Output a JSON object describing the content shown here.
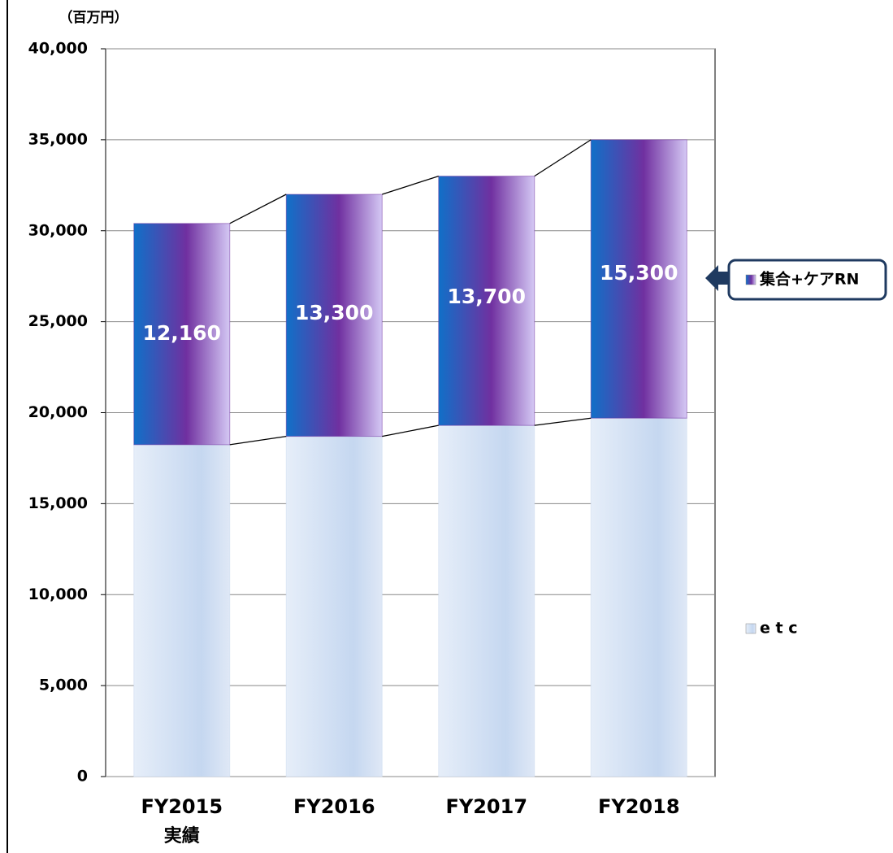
{
  "chart_data": {
    "type": "stacked_bar",
    "y_axis_label": "（百万円）",
    "categories": [
      "FY2015",
      "FY2016",
      "FY2017",
      "FY2018"
    ],
    "category_sublabels": [
      "実績",
      null,
      null,
      null
    ],
    "series": [
      {
        "name": "e t c",
        "color": "#c9daf0",
        "values": [
          18240,
          18700,
          19300,
          19700
        ]
      },
      {
        "name": "集合+ケアRN",
        "color": "#7030a0",
        "values": [
          12160,
          13300,
          13700,
          15300
        ],
        "value_labels": [
          "12,160",
          "13,300",
          "13,700",
          "15,300"
        ]
      }
    ],
    "ylim": [
      0,
      40000
    ],
    "yticks": [
      0,
      {
        "value": 5000,
        "label": "5,000"
      },
      {
        "value": 10000,
        "label": "10,000"
      },
      {
        "value": 15000,
        "label": "15,000"
      },
      {
        "value": 20000,
        "label": "20,000"
      },
      {
        "value": 25000,
        "label": "25,000"
      },
      {
        "value": 30000,
        "label": "30,000"
      },
      {
        "value": 35000,
        "label": "35,000"
      },
      {
        "value": 40000,
        "label": "40,000"
      }
    ],
    "grid": true
  }
}
